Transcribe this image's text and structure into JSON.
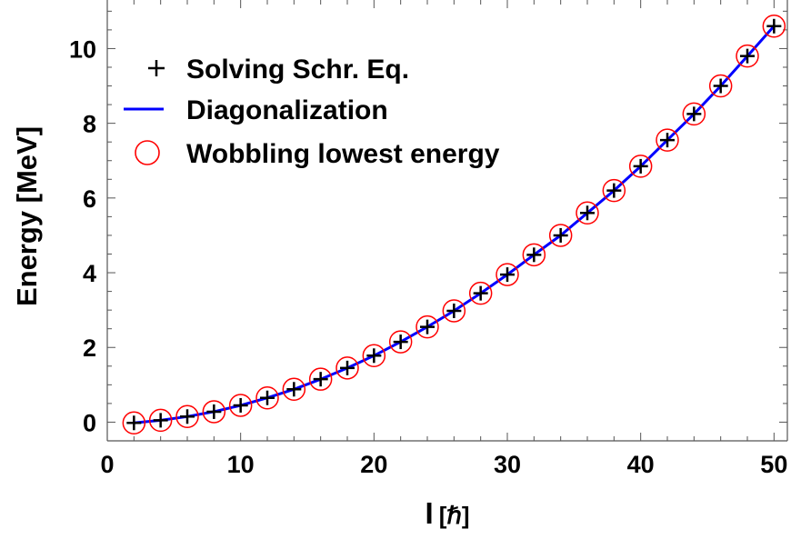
{
  "chart_data": {
    "type": "scatter",
    "title": "",
    "xlabel": "I",
    "xlabel_unit": "[ℏ]",
    "ylabel": "Energy [MeV]",
    "xlim": [
      0,
      51
    ],
    "ylim": [
      -0.5,
      11.3
    ],
    "x_ticks": [
      0,
      10,
      20,
      30,
      40,
      50
    ],
    "y_ticks": [
      0,
      2,
      4,
      6,
      8,
      10
    ],
    "grid": false,
    "legend_position": "top-left",
    "series": [
      {
        "name": "Solving Schr. Eq.",
        "marker": "plus",
        "color": "#000000",
        "x": [
          2,
          4,
          6,
          8,
          10,
          12,
          14,
          16,
          18,
          20,
          22,
          24,
          26,
          28,
          30,
          32,
          34,
          36,
          38,
          40,
          42,
          44,
          46,
          48,
          50
        ],
        "y": [
          -0.02,
          0.05,
          0.15,
          0.28,
          0.45,
          0.65,
          0.88,
          1.15,
          1.45,
          1.78,
          2.15,
          2.55,
          2.98,
          3.45,
          3.95,
          4.48,
          5.0,
          5.6,
          6.2,
          6.85,
          7.55,
          8.25,
          9.0,
          9.8,
          10.6
        ]
      },
      {
        "name": "Diagonalization",
        "marker": "line",
        "color": "#0000ff",
        "x": [
          2,
          4,
          6,
          8,
          10,
          12,
          14,
          16,
          18,
          20,
          22,
          24,
          26,
          28,
          30,
          32,
          34,
          36,
          38,
          40,
          42,
          44,
          46,
          48,
          50
        ],
        "y": [
          -0.02,
          0.05,
          0.15,
          0.28,
          0.45,
          0.65,
          0.88,
          1.15,
          1.45,
          1.78,
          2.15,
          2.55,
          2.98,
          3.45,
          3.95,
          4.48,
          5.0,
          5.6,
          6.2,
          6.85,
          7.55,
          8.25,
          9.0,
          9.8,
          10.6
        ]
      },
      {
        "name": "Wobbling lowest energy",
        "marker": "open-circle",
        "color": "#ff0000",
        "x": [
          2,
          4,
          6,
          8,
          10,
          12,
          14,
          16,
          18,
          20,
          22,
          24,
          26,
          28,
          30,
          32,
          34,
          36,
          38,
          40,
          42,
          44,
          46,
          48,
          50
        ],
        "y": [
          -0.02,
          0.05,
          0.15,
          0.28,
          0.45,
          0.65,
          0.88,
          1.15,
          1.45,
          1.78,
          2.15,
          2.55,
          2.98,
          3.45,
          3.95,
          4.48,
          5.0,
          5.6,
          6.2,
          6.85,
          7.55,
          8.25,
          9.0,
          9.8,
          10.6
        ]
      }
    ]
  }
}
